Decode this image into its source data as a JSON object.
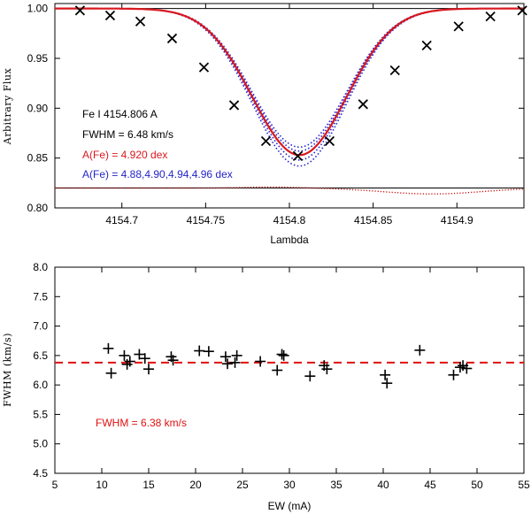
{
  "chart_data": [
    {
      "type": "line",
      "panel": "top",
      "xlabel": "Lambda",
      "ylabel": "Arbitrary Flux",
      "xlim": [
        4154.66,
        4154.94
      ],
      "ylim": [
        0.8,
        1.005
      ],
      "xticks": [
        4154.7,
        4154.75,
        4154.8,
        4154.85,
        4154.9
      ],
      "xtick_labels": [
        "4154.7",
        "4154.75",
        "4154.8",
        "4154.85",
        "4154.9"
      ],
      "yticks": [
        0.8,
        0.85,
        0.9,
        0.95,
        1.0
      ],
      "ytick_labels": [
        "0.80",
        "0.85",
        "0.90",
        "0.95",
        "1.00"
      ],
      "line_center": 4154.806,
      "annotations": {
        "line_id": "Fe I 4154.806 A",
        "fwhm": "FWHM = 6.48 km/s",
        "best_abundance": "A(Fe) = 4.920 dex",
        "abundance_grid": "A(Fe) = 4.88,4.90,4.94,4.96 dex"
      },
      "best_fit": {
        "name": "A(Fe) = 4.920 dex",
        "depth": 0.147,
        "color": "#d9181e"
      },
      "grid_fits": [
        {
          "name": "4.88",
          "depth": 0.139,
          "color": "#2424c8"
        },
        {
          "name": "4.90",
          "depth": 0.143,
          "color": "#2424c8"
        },
        {
          "name": "4.94",
          "depth": 0.152,
          "color": "#2424c8"
        },
        {
          "name": "4.96",
          "depth": 0.158,
          "color": "#2424c8"
        }
      ],
      "observed": {
        "x": [
          4154.675,
          4154.693,
          4154.711,
          4154.73,
          4154.749,
          4154.767,
          4154.786,
          4154.805,
          4154.824,
          4154.844,
          4154.863,
          4154.882,
          4154.901,
          4154.92,
          4154.939
        ],
        "y": [
          0.998,
          0.993,
          0.987,
          0.97,
          0.941,
          0.903,
          0.867,
          0.852,
          0.867,
          0.904,
          0.938,
          0.963,
          0.982,
          0.992,
          0.998
        ]
      },
      "residual_baseline": 0.82
    },
    {
      "type": "scatter",
      "panel": "bottom",
      "xlabel": "EW (mA)",
      "ylabel": "FWHM (km/s)",
      "xlim": [
        5,
        55
      ],
      "ylim": [
        4.5,
        8.0
      ],
      "xticks": [
        5,
        10,
        15,
        20,
        25,
        30,
        35,
        40,
        45,
        50,
        55
      ],
      "yticks": [
        4.5,
        5.0,
        5.5,
        6.0,
        6.5,
        7.0,
        7.5,
        8.0
      ],
      "ytick_labels": [
        "4.5",
        "5.0",
        "5.5",
        "6.0",
        "6.5",
        "7.0",
        "7.5",
        "8.0"
      ],
      "mean_line": {
        "value": 6.38,
        "label": "FWHM = 6.38 km/s",
        "color": "#e01010"
      },
      "points": {
        "x": [
          10.7,
          11.0,
          12.4,
          12.7,
          13.0,
          14.0,
          14.6,
          15.0,
          17.4,
          17.6,
          20.4,
          21.4,
          23.2,
          23.4,
          24.2,
          24.4,
          26.9,
          28.7,
          29.2,
          29.4,
          32.2,
          33.7,
          34.0,
          40.2,
          40.4,
          43.9,
          47.5,
          48.2,
          48.5,
          48.9
        ],
        "y": [
          6.62,
          6.2,
          6.5,
          6.35,
          6.4,
          6.52,
          6.45,
          6.27,
          6.48,
          6.42,
          6.58,
          6.57,
          6.48,
          6.36,
          6.38,
          6.5,
          6.4,
          6.25,
          6.52,
          6.5,
          6.15,
          6.33,
          6.27,
          6.17,
          6.03,
          6.59,
          6.17,
          6.3,
          6.33,
          6.28
        ]
      }
    }
  ]
}
